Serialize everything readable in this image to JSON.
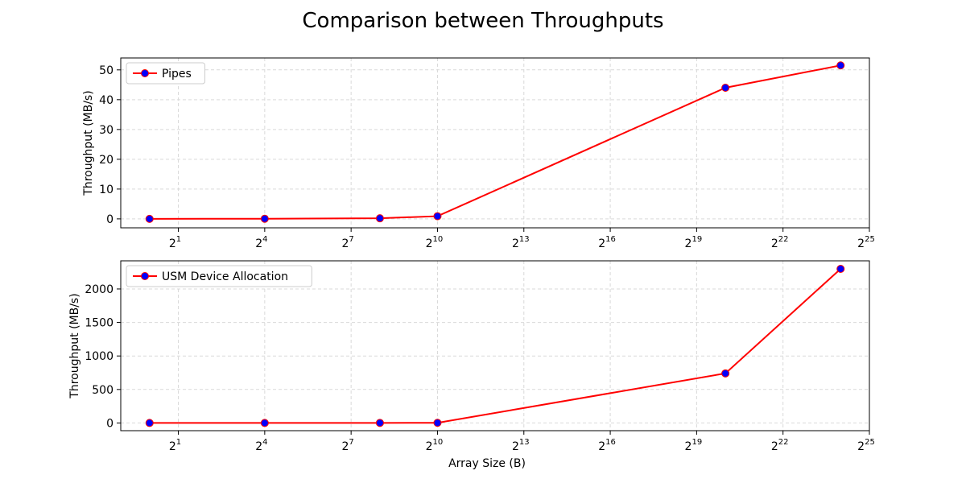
{
  "figure": {
    "title": "Comparison between Throughputs"
  },
  "colors": {
    "line": "#ff0000",
    "marker_face": "#0000ff",
    "marker_edge": "#ff0000",
    "grid": "#d9d9d9",
    "axes": "#000000"
  },
  "chart_data": [
    {
      "type": "line",
      "xscale": "log2",
      "x_tick_exponents": [
        1,
        4,
        7,
        10,
        13,
        16,
        19,
        22,
        25
      ],
      "x_tick_base": "2",
      "xlim": [
        0.5,
        33554432
      ],
      "ylim": [
        -3,
        54
      ],
      "y_ticks": [
        0,
        10,
        20,
        30,
        40,
        50
      ],
      "xlabel": "",
      "ylabel": "Throughput (MB/s)",
      "grid": true,
      "legend": "upper-left",
      "series": [
        {
          "name": "Pipes",
          "x": [
            1,
            16,
            256,
            1024,
            1048576,
            16777216
          ],
          "values": [
            0.0,
            0.05,
            0.2,
            0.9,
            44.0,
            51.5
          ]
        }
      ]
    },
    {
      "type": "line",
      "xscale": "log2",
      "x_tick_exponents": [
        1,
        4,
        7,
        10,
        13,
        16,
        19,
        22,
        25
      ],
      "x_tick_base": "2",
      "xlim": [
        0.5,
        33554432
      ],
      "ylim": [
        -115,
        2420
      ],
      "y_ticks": [
        0,
        500,
        1000,
        1500,
        2000
      ],
      "xlabel": "Array Size (B)",
      "ylabel": "Throughput (MB/s)",
      "grid": true,
      "legend": "upper-left",
      "series": [
        {
          "name": "USM Device Allocation",
          "x": [
            1,
            16,
            256,
            1024,
            1048576,
            16777216
          ],
          "values": [
            0.0,
            0.1,
            1.0,
            2.0,
            740.0,
            2300.0
          ]
        }
      ]
    }
  ]
}
